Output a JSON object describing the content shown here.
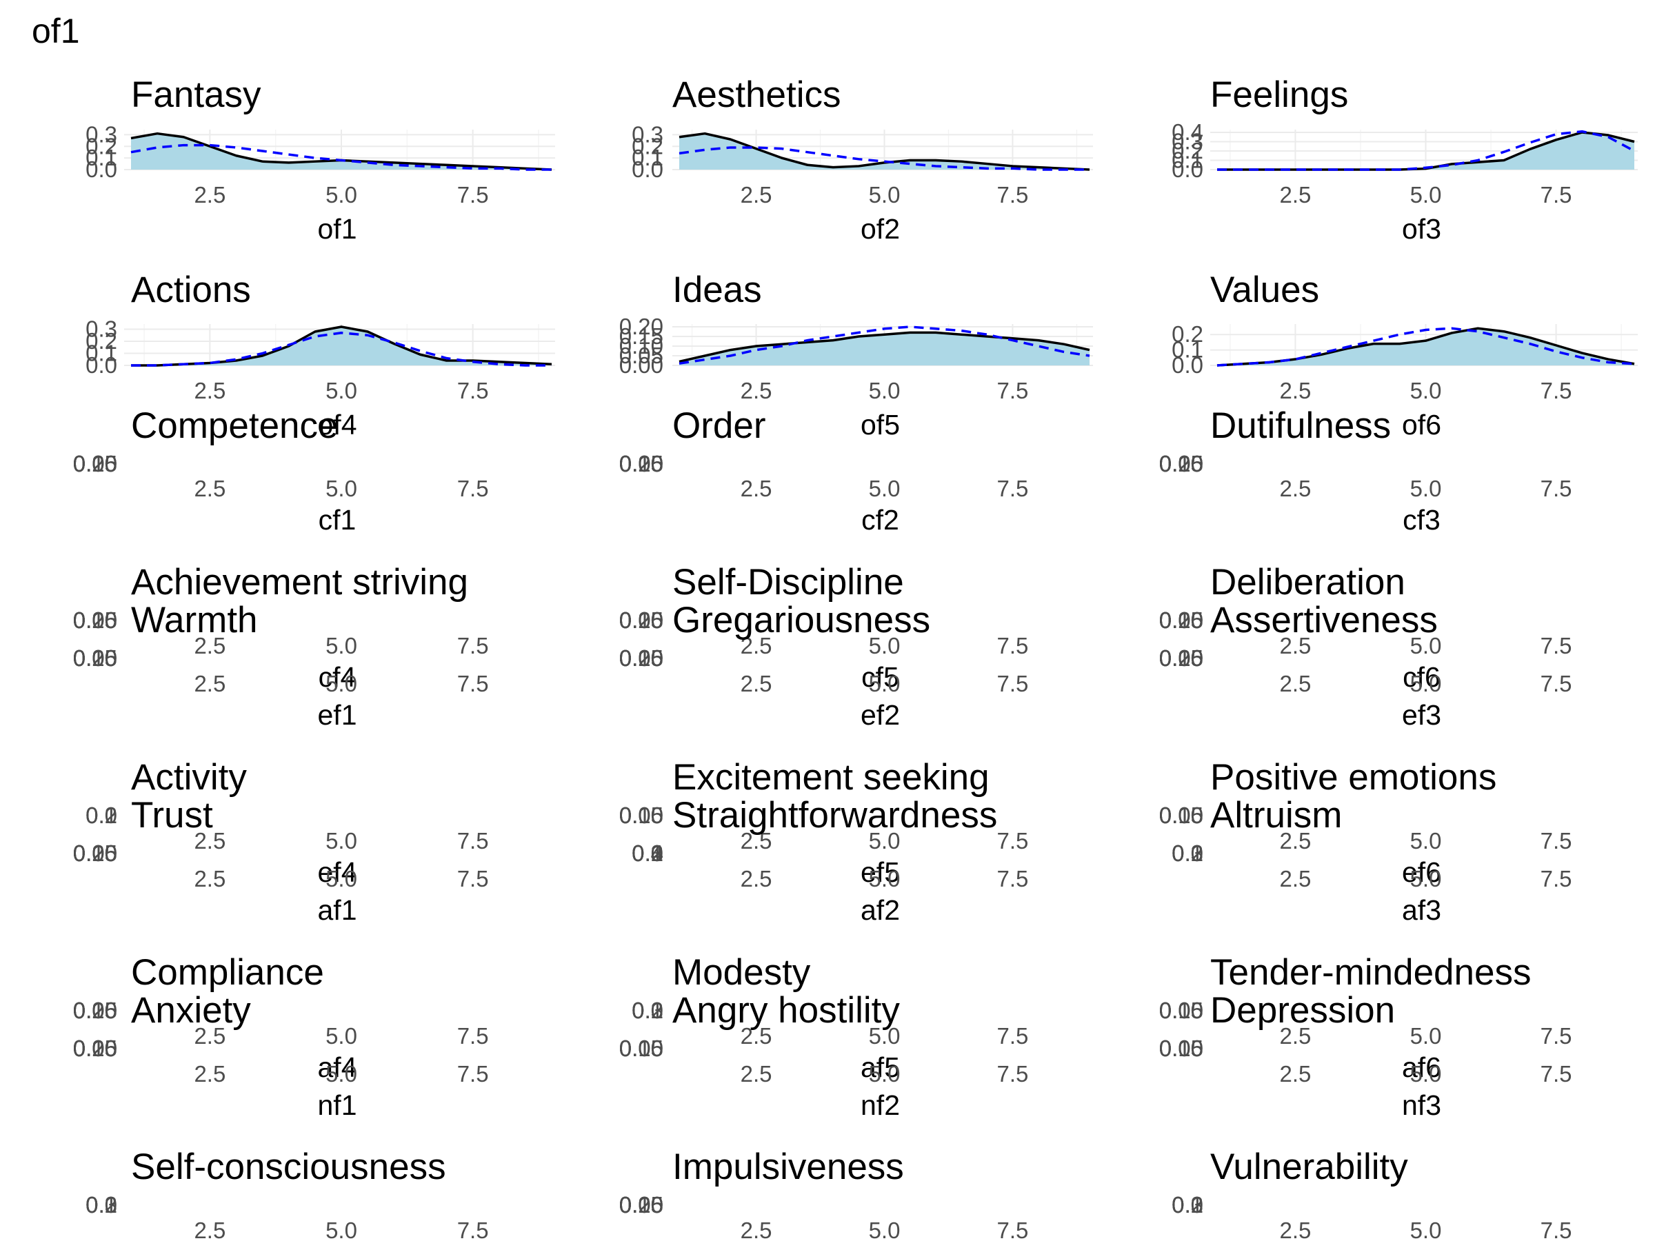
{
  "page_title": "of1",
  "colors": {
    "density_fill": "#add8e6",
    "density_line": "#000000",
    "normal_line": "#0000ff",
    "grid": "#ebebeb",
    "tick_text": "#4d4d4d"
  },
  "chart_data": [
    {
      "type": "area",
      "title": "Fantasy",
      "xlabel": "of1",
      "xlim": [
        1,
        9
      ],
      "ylim": [
        0,
        0.32
      ],
      "xticks": [
        "2.5",
        "5.0",
        "7.5"
      ],
      "yticks": [
        "0.0",
        "0.1",
        "0.2",
        "0.3"
      ],
      "x": [
        1,
        1.5,
        2,
        2.5,
        3,
        3.5,
        4,
        4.5,
        5,
        5.5,
        6,
        6.5,
        7,
        7.5,
        8,
        8.5,
        9
      ],
      "series": [
        {
          "values": [
            0.27,
            0.31,
            0.28,
            0.2,
            0.12,
            0.07,
            0.06,
            0.07,
            0.08,
            0.07,
            0.06,
            0.05,
            0.04,
            0.03,
            0.02,
            0.01,
            0.0
          ]
        },
        {
          "values": [
            0.15,
            0.19,
            0.21,
            0.21,
            0.19,
            0.16,
            0.13,
            0.1,
            0.08,
            0.06,
            0.04,
            0.03,
            0.02,
            0.01,
            0.01,
            0.0,
            0.0
          ]
        }
      ]
    },
    {
      "type": "area",
      "title": "Aesthetics",
      "xlabel": "of2",
      "xlim": [
        1,
        9
      ],
      "ylim": [
        0,
        0.32
      ],
      "xticks": [
        "2.5",
        "5.0",
        "7.5"
      ],
      "yticks": [
        "0.0",
        "0.1",
        "0.2",
        "0.3"
      ],
      "x": [
        1,
        1.5,
        2,
        2.5,
        3,
        3.5,
        4,
        4.5,
        5,
        5.5,
        6,
        6.5,
        7,
        7.5,
        8,
        8.5,
        9
      ],
      "series": [
        {
          "values": [
            0.28,
            0.31,
            0.26,
            0.18,
            0.1,
            0.04,
            0.02,
            0.03,
            0.06,
            0.08,
            0.08,
            0.07,
            0.05,
            0.03,
            0.02,
            0.01,
            0.0
          ]
        },
        {
          "values": [
            0.14,
            0.17,
            0.19,
            0.19,
            0.18,
            0.15,
            0.12,
            0.09,
            0.07,
            0.05,
            0.03,
            0.02,
            0.01,
            0.01,
            0.0,
            0.0,
            0.0
          ]
        }
      ]
    },
    {
      "type": "area",
      "title": "Feelings",
      "xlabel": "of3",
      "xlim": [
        1,
        9
      ],
      "ylim": [
        0,
        0.4
      ],
      "xticks": [
        "2.5",
        "5.0",
        "7.5"
      ],
      "yticks": [
        "0.0",
        "0.1",
        "0.2",
        "0.3",
        "0.4"
      ],
      "x": [
        1,
        1.5,
        2,
        2.5,
        3,
        3.5,
        4,
        4.5,
        5,
        5.5,
        6,
        6.5,
        7,
        7.5,
        8,
        8.5,
        9
      ],
      "series": [
        {
          "values": [
            0.0,
            0.0,
            0.0,
            0.0,
            0.0,
            0.0,
            0.0,
            0.0,
            0.01,
            0.06,
            0.08,
            0.1,
            0.22,
            0.32,
            0.4,
            0.37,
            0.3
          ]
        },
        {
          "values": [
            0.0,
            0.0,
            0.0,
            0.0,
            0.0,
            0.0,
            0.0,
            0.0,
            0.02,
            0.05,
            0.1,
            0.19,
            0.29,
            0.38,
            0.41,
            0.35,
            0.2
          ]
        }
      ]
    },
    {
      "type": "area",
      "title": "Actions",
      "xlabel": "of4",
      "xlim": [
        1,
        9
      ],
      "ylim": [
        0,
        0.32
      ],
      "xticks": [
        "2.5",
        "5.0",
        "7.5"
      ],
      "yticks": [
        "0.0",
        "0.1",
        "0.2",
        "0.3"
      ],
      "x": [
        1,
        1.5,
        2,
        2.5,
        3,
        3.5,
        4,
        4.5,
        5,
        5.5,
        6,
        6.5,
        7,
        7.5,
        8,
        8.5,
        9
      ],
      "series": [
        {
          "values": [
            0.0,
            0.0,
            0.01,
            0.02,
            0.04,
            0.08,
            0.16,
            0.28,
            0.32,
            0.28,
            0.18,
            0.09,
            0.04,
            0.04,
            0.03,
            0.02,
            0.01
          ]
        },
        {
          "values": [
            0.0,
            0.0,
            0.01,
            0.02,
            0.05,
            0.1,
            0.17,
            0.24,
            0.27,
            0.25,
            0.19,
            0.12,
            0.06,
            0.03,
            0.01,
            0.0,
            0.0
          ]
        }
      ]
    },
    {
      "type": "area",
      "title": "Ideas",
      "xlabel": "of5",
      "xlim": [
        1,
        9
      ],
      "ylim": [
        0,
        0.2
      ],
      "xticks": [
        "2.5",
        "5.0",
        "7.5"
      ],
      "yticks": [
        "0.00",
        "0.05",
        "0.10",
        "0.15",
        "0.20"
      ],
      "x": [
        1,
        1.5,
        2,
        2.5,
        3,
        3.5,
        4,
        4.5,
        5,
        5.5,
        6,
        6.5,
        7,
        7.5,
        8,
        8.5,
        9
      ],
      "series": [
        {
          "values": [
            0.02,
            0.05,
            0.08,
            0.1,
            0.11,
            0.12,
            0.13,
            0.15,
            0.16,
            0.17,
            0.17,
            0.16,
            0.15,
            0.14,
            0.13,
            0.11,
            0.08
          ]
        },
        {
          "values": [
            0.01,
            0.03,
            0.05,
            0.08,
            0.1,
            0.13,
            0.15,
            0.17,
            0.19,
            0.2,
            0.19,
            0.18,
            0.16,
            0.13,
            0.1,
            0.07,
            0.05
          ]
        }
      ]
    },
    {
      "type": "area",
      "title": "Values",
      "xlabel": "of6",
      "xlim": [
        1,
        9
      ],
      "ylim": [
        0,
        0.25
      ],
      "xticks": [
        "2.5",
        "5.0",
        "7.5"
      ],
      "yticks": [
        "0.0",
        "0.1",
        "0.2"
      ],
      "x": [
        1,
        1.5,
        2,
        2.5,
        3,
        3.5,
        4,
        4.5,
        5,
        5.5,
        6,
        6.5,
        7,
        7.5,
        8,
        8.5,
        9
      ],
      "series": [
        {
          "values": [
            0.0,
            0.01,
            0.02,
            0.04,
            0.07,
            0.11,
            0.14,
            0.14,
            0.16,
            0.21,
            0.24,
            0.22,
            0.18,
            0.13,
            0.08,
            0.04,
            0.01
          ]
        },
        {
          "values": [
            0.0,
            0.01,
            0.02,
            0.04,
            0.08,
            0.12,
            0.16,
            0.2,
            0.23,
            0.24,
            0.22,
            0.18,
            0.14,
            0.09,
            0.05,
            0.02,
            0.01
          ]
        }
      ]
    },
    {
      "type": "area",
      "title": "Competence",
      "xlabel": "cf1",
      "xticks": [
        "2.5",
        "5.0",
        "7.5"
      ],
      "yticks": [
        "0.00",
        "0.05",
        "0.10",
        "0.15",
        "0.20",
        "0.25"
      ]
    },
    {
      "type": "area",
      "title": "Order",
      "xlabel": "cf2",
      "xticks": [
        "2.5",
        "5.0",
        "7.5"
      ],
      "yticks": [
        "0.00",
        "0.05",
        "0.10",
        "0.15",
        "0.20",
        "0.25"
      ]
    },
    {
      "type": "area",
      "title": "Dutifulness",
      "xlabel": "cf3",
      "xticks": [
        "2.5",
        "5.0",
        "7.5"
      ],
      "yticks": [
        "0.00",
        "0.05",
        "0.10",
        "0.15",
        "0.20",
        "0.25"
      ]
    },
    {
      "type": "area",
      "title": "Achievement striving",
      "xlabel": "cf4",
      "xticks": [
        "2.5",
        "5.0",
        "7.5"
      ],
      "yticks": [
        "0.00",
        "0.05",
        "0.10",
        "0.15",
        "0.20",
        "0.25"
      ]
    },
    {
      "type": "area",
      "title": "Self-Discipline",
      "xlabel": "cf5",
      "xticks": [
        "2.5",
        "5.0",
        "7.5"
      ],
      "yticks": [
        "0.00",
        "0.05",
        "0.10",
        "0.15",
        "0.20",
        "0.25"
      ]
    },
    {
      "type": "area",
      "title": "Deliberation",
      "xlabel": "cf6",
      "xticks": [
        "2.5",
        "5.0",
        "7.5"
      ],
      "yticks": [
        "0.00",
        "0.05",
        "0.10",
        "0.15",
        "0.20",
        "0.25"
      ]
    },
    {
      "type": "area",
      "title": "Warmth",
      "xlabel": "ef1",
      "xticks": [
        "2.5",
        "5.0",
        "7.5"
      ],
      "yticks": [
        "0.00",
        "0.05",
        "0.10",
        "0.15",
        "0.20",
        "0.25"
      ]
    },
    {
      "type": "area",
      "title": "Gregariousness",
      "xlabel": "ef2",
      "xticks": [
        "2.5",
        "5.0",
        "7.5"
      ],
      "yticks": [
        "0.00",
        "0.05",
        "0.10",
        "0.15",
        "0.20",
        "0.25"
      ]
    },
    {
      "type": "area",
      "title": "Assertiveness",
      "xlabel": "ef3",
      "xticks": [
        "2.5",
        "5.0",
        "7.5"
      ],
      "yticks": [
        "0.00",
        "0.05",
        "0.10",
        "0.15",
        "0.20",
        "0.25"
      ]
    },
    {
      "type": "area",
      "title": "Activity",
      "xlabel": "ef4",
      "xticks": [
        "2.5",
        "5.0",
        "7.5"
      ],
      "yticks": [
        "0.0",
        "0.1",
        "0.2"
      ]
    },
    {
      "type": "area",
      "title": "Excitement seeking",
      "xlabel": "ef5",
      "xticks": [
        "2.5",
        "5.0",
        "7.5"
      ],
      "yticks": [
        "0.00",
        "0.05",
        "0.10",
        "0.15"
      ]
    },
    {
      "type": "area",
      "title": "Positive emotions",
      "xlabel": "ef6",
      "xticks": [
        "2.5",
        "5.0",
        "7.5"
      ],
      "yticks": [
        "0.00",
        "0.05",
        "0.10",
        "0.15"
      ]
    },
    {
      "type": "area",
      "title": "Trust",
      "xlabel": "af1",
      "xticks": [
        "2.5",
        "5.0",
        "7.5"
      ],
      "yticks": [
        "0.00",
        "0.05",
        "0.10",
        "0.15",
        "0.20",
        "0.25"
      ]
    },
    {
      "type": "area",
      "title": "Straightforwardness",
      "xlabel": "af2",
      "xticks": [
        "2.5",
        "5.0",
        "7.5"
      ],
      "yticks": [
        "0.0",
        "0.1",
        "0.2",
        "0.3",
        "0.4"
      ]
    },
    {
      "type": "area",
      "title": "Altruism",
      "xlabel": "af3",
      "xticks": [
        "2.5",
        "5.0",
        "7.5"
      ],
      "yticks": [
        "0.0",
        "0.1",
        "0.2",
        "0.3"
      ]
    },
    {
      "type": "area",
      "title": "Compliance",
      "xlabel": "af4",
      "xticks": [
        "2.5",
        "5.0",
        "7.5"
      ],
      "yticks": [
        "0.00",
        "0.05",
        "0.10",
        "0.15",
        "0.20",
        "0.25"
      ]
    },
    {
      "type": "area",
      "title": "Modesty",
      "xlabel": "af5",
      "xticks": [
        "2.5",
        "5.0",
        "7.5"
      ],
      "yticks": [
        "0.0",
        "0.1",
        "0.2",
        "0.3"
      ]
    },
    {
      "type": "area",
      "title": "Tender-mindedness",
      "xlabel": "af6",
      "xticks": [
        "2.5",
        "5.0",
        "7.5"
      ],
      "yticks": [
        "0.00",
        "0.05",
        "0.10",
        "0.15"
      ]
    },
    {
      "type": "area",
      "title": "Anxiety",
      "xlabel": "nf1",
      "xticks": [
        "2.5",
        "5.0",
        "7.5"
      ],
      "yticks": [
        "0.00",
        "0.05",
        "0.10",
        "0.15",
        "0.20",
        "0.25"
      ]
    },
    {
      "type": "area",
      "title": "Angry hostility",
      "xlabel": "nf2",
      "xticks": [
        "2.5",
        "5.0",
        "7.5"
      ],
      "yticks": [
        "0.00",
        "0.05",
        "0.10",
        "0.15"
      ]
    },
    {
      "type": "area",
      "title": "Depression",
      "xlabel": "nf3",
      "xticks": [
        "2.5",
        "5.0",
        "7.5"
      ],
      "yticks": [
        "0.00",
        "0.05",
        "0.10",
        "0.15"
      ]
    },
    {
      "type": "area",
      "title": "Self-consciousness",
      "xticks": [
        "2.5",
        "5.0",
        "7.5"
      ],
      "yticks": [
        "0.0",
        "0.1",
        "0.2",
        "0.3"
      ]
    },
    {
      "type": "area",
      "title": "Impulsiveness",
      "xticks": [
        "2.5",
        "5.0",
        "7.5"
      ],
      "yticks": [
        "0.00",
        "0.05",
        "0.10",
        "0.15",
        "0.20",
        "0.25"
      ]
    },
    {
      "type": "area",
      "title": "Vulnerability",
      "xticks": [
        "2.5",
        "5.0",
        "7.5"
      ],
      "yticks": [
        "0.0",
        "0.1",
        "0.2",
        "0.3"
      ]
    }
  ]
}
